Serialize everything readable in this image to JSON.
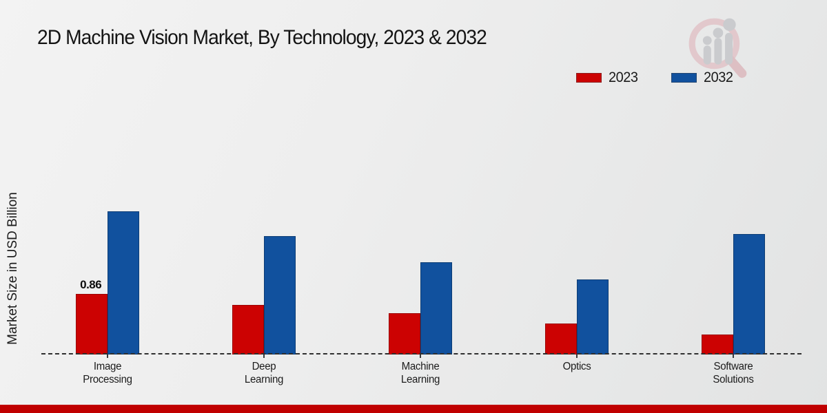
{
  "page": {
    "accent_bar_color": "#c00000",
    "background_color": "#ececec"
  },
  "logo": {
    "icon": "magnifier-bar-chart-logo",
    "ring_color": "#e2c5c9",
    "bars_color": "#c7c8cc"
  },
  "chart_data": {
    "type": "bar",
    "title": "2D Machine Vision Market, By Technology, 2023 & 2032",
    "ylabel": "Market Size in USD Billion",
    "xlabel": "",
    "categories": [
      "Image Processing",
      "Deep Learning",
      "Machine Learning",
      "Optics",
      "Software Solutions"
    ],
    "series": [
      {
        "name": "2023",
        "color": "#cc0202",
        "edge_color": "#9b0303",
        "values": [
          0.86,
          0.7,
          0.59,
          0.44,
          0.28
        ]
      },
      {
        "name": "2032",
        "color": "#11519e",
        "edge_color": "#0c3c74",
        "values": [
          2.03,
          1.68,
          1.31,
          1.07,
          1.71
        ]
      }
    ],
    "data_labels": [
      {
        "series": "2023",
        "category": "Image Processing",
        "value": "0.86"
      }
    ],
    "ylim": [
      0,
      2.2
    ],
    "grid": false,
    "baseline_style": "dashed",
    "legend_position": "top-right"
  }
}
